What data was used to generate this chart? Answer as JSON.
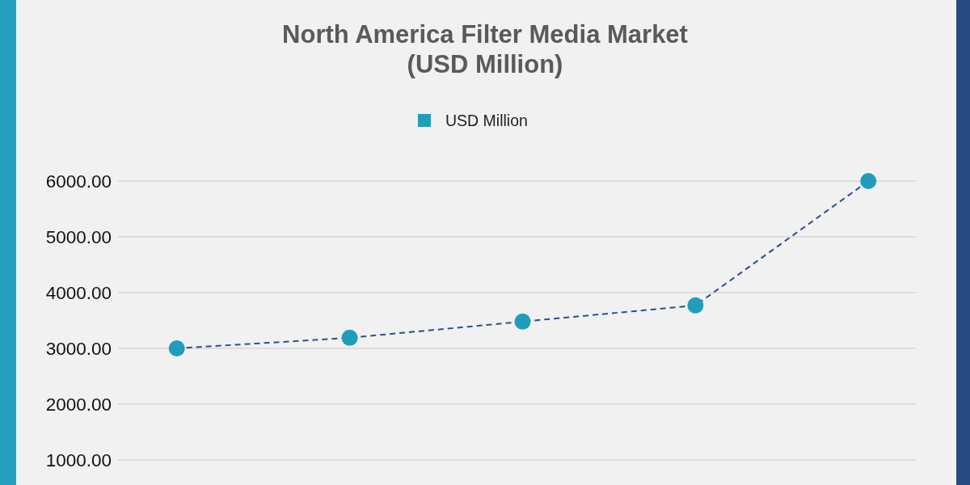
{
  "chart_data": {
    "type": "line",
    "title": "North America Filter Media Market\n(USD Million)",
    "categories": [
      null,
      null,
      null,
      null,
      null
    ],
    "series": [
      {
        "name": "USD Million",
        "color": "#2e4f8c",
        "colors": [
          "#219dbc",
          "#219dbc",
          "#219dbc",
          "#219dbc",
          "#219dbc"
        ],
        "values": [
          3000,
          3190,
          3480,
          3770,
          6000
        ]
      }
    ],
    "ylim": [
      550,
      6000
    ],
    "yticks": [
      {
        "value": 1000,
        "label": "1000.00"
      },
      {
        "value": 2000,
        "label": "2000.00"
      },
      {
        "value": 3000,
        "label": "3000.00"
      },
      {
        "value": 4000,
        "label": "4000.00"
      },
      {
        "value": 5000,
        "label": "5000.00"
      },
      {
        "value": 6000,
        "label": "6000.00"
      }
    ],
    "grid": "y",
    "legend": "top",
    "marker": "circle",
    "line_style": "dashed",
    "tick_labels": "y"
  }
}
